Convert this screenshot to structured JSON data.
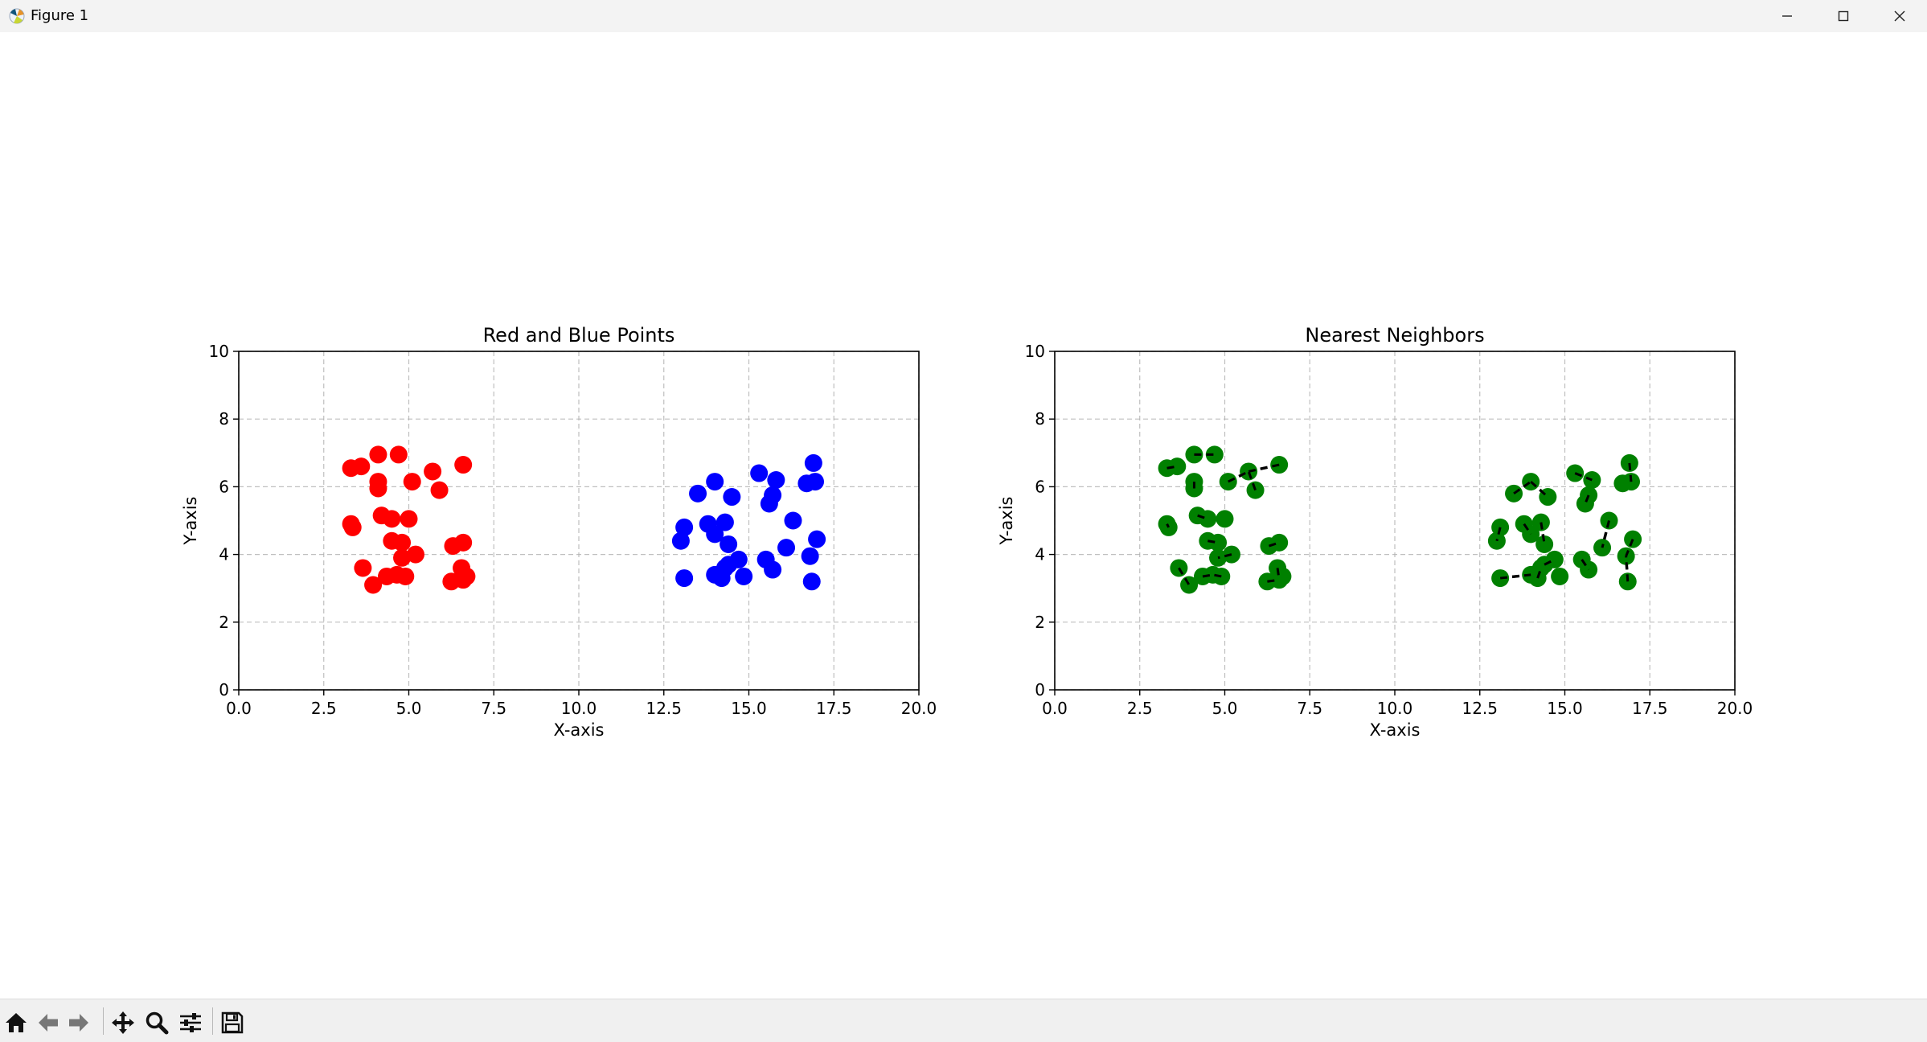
{
  "window": {
    "title": "Figure 1",
    "controls": [
      "minimize",
      "maximize",
      "close"
    ]
  },
  "toolbar": {
    "buttons": [
      "home-icon",
      "back-icon",
      "forward-icon",
      "pan-icon",
      "zoom-icon",
      "configure-subplots-icon",
      "save-icon"
    ],
    "coordinates": ""
  },
  "chart_data": [
    {
      "type": "scatter",
      "title": "Red and Blue Points",
      "xlabel": "X-axis",
      "ylabel": "Y-axis",
      "xlim": [
        0,
        20
      ],
      "ylim": [
        0,
        10
      ],
      "xticks": [
        "0.0",
        "2.5",
        "5.0",
        "7.5",
        "10.0",
        "12.5",
        "15.0",
        "17.5",
        "20.0"
      ],
      "yticks": [
        "0",
        "2",
        "4",
        "6",
        "8",
        "10"
      ],
      "grid": true,
      "series": [
        {
          "color": "#ff0000",
          "points": [
            [
              3.3,
              6.55
            ],
            [
              3.6,
              6.6
            ],
            [
              4.1,
              6.95
            ],
            [
              4.7,
              6.95
            ],
            [
              4.1,
              6.15
            ],
            [
              4.1,
              5.95
            ],
            [
              5.1,
              6.15
            ],
            [
              5.7,
              6.45
            ],
            [
              5.9,
              5.9
            ],
            [
              6.6,
              6.65
            ],
            [
              3.3,
              4.9
            ],
            [
              3.35,
              4.8
            ],
            [
              4.2,
              5.15
            ],
            [
              4.5,
              5.05
            ],
            [
              5.0,
              5.05
            ],
            [
              4.5,
              4.4
            ],
            [
              4.8,
              4.35
            ],
            [
              5.2,
              4.0
            ],
            [
              4.8,
              3.9
            ],
            [
              6.3,
              4.25
            ],
            [
              6.6,
              4.35
            ],
            [
              3.65,
              3.6
            ],
            [
              3.95,
              3.1
            ],
            [
              4.35,
              3.35
            ],
            [
              4.65,
              3.4
            ],
            [
              4.9,
              3.35
            ],
            [
              6.25,
              3.2
            ],
            [
              6.55,
              3.6
            ],
            [
              6.6,
              3.25
            ],
            [
              6.7,
              3.35
            ]
          ]
        },
        {
          "color": "#0000ff",
          "points": [
            [
              14.0,
              6.15
            ],
            [
              13.5,
              5.8
            ],
            [
              14.5,
              5.7
            ],
            [
              15.3,
              6.4
            ],
            [
              15.8,
              6.2
            ],
            [
              15.7,
              5.75
            ],
            [
              15.6,
              5.5
            ],
            [
              16.9,
              6.7
            ],
            [
              16.7,
              6.1
            ],
            [
              16.95,
              6.15
            ],
            [
              13.1,
              4.8
            ],
            [
              13.0,
              4.4
            ],
            [
              13.8,
              4.9
            ],
            [
              14.0,
              4.6
            ],
            [
              14.3,
              4.95
            ],
            [
              14.4,
              4.3
            ],
            [
              16.3,
              5.0
            ],
            [
              16.1,
              4.2
            ],
            [
              17.0,
              4.45
            ],
            [
              16.8,
              3.95
            ],
            [
              13.1,
              3.3
            ],
            [
              14.0,
              3.4
            ],
            [
              14.2,
              3.3
            ],
            [
              14.3,
              3.6
            ],
            [
              14.4,
              3.7
            ],
            [
              14.7,
              3.85
            ],
            [
              14.85,
              3.35
            ],
            [
              15.5,
              3.85
            ],
            [
              15.7,
              3.55
            ],
            [
              16.85,
              3.2
            ]
          ]
        }
      ]
    },
    {
      "type": "scatter",
      "title": "Nearest Neighbors",
      "xlabel": "X-axis",
      "ylabel": "Y-axis",
      "xlim": [
        0,
        20
      ],
      "ylim": [
        0,
        10
      ],
      "xticks": [
        "0.0",
        "2.5",
        "5.0",
        "7.5",
        "10.0",
        "12.5",
        "15.0",
        "17.5",
        "20.0"
      ],
      "yticks": [
        "0",
        "2",
        "4",
        "6",
        "8",
        "10"
      ],
      "grid": true,
      "series": [
        {
          "color": "#008000",
          "points": [
            [
              3.3,
              6.55
            ],
            [
              3.6,
              6.6
            ],
            [
              4.1,
              6.95
            ],
            [
              4.7,
              6.95
            ],
            [
              4.1,
              6.15
            ],
            [
              4.1,
              5.95
            ],
            [
              5.1,
              6.15
            ],
            [
              5.7,
              6.45
            ],
            [
              5.9,
              5.9
            ],
            [
              6.6,
              6.65
            ],
            [
              3.3,
              4.9
            ],
            [
              3.35,
              4.8
            ],
            [
              4.2,
              5.15
            ],
            [
              4.5,
              5.05
            ],
            [
              5.0,
              5.05
            ],
            [
              4.5,
              4.4
            ],
            [
              4.8,
              4.35
            ],
            [
              5.2,
              4.0
            ],
            [
              4.8,
              3.9
            ],
            [
              6.3,
              4.25
            ],
            [
              6.6,
              4.35
            ],
            [
              3.65,
              3.6
            ],
            [
              3.95,
              3.1
            ],
            [
              4.35,
              3.35
            ],
            [
              4.65,
              3.4
            ],
            [
              4.9,
              3.35
            ],
            [
              6.25,
              3.2
            ],
            [
              6.55,
              3.6
            ],
            [
              6.6,
              3.25
            ],
            [
              6.7,
              3.35
            ],
            [
              14.0,
              6.15
            ],
            [
              13.5,
              5.8
            ],
            [
              14.5,
              5.7
            ],
            [
              15.3,
              6.4
            ],
            [
              15.8,
              6.2
            ],
            [
              15.7,
              5.75
            ],
            [
              15.6,
              5.5
            ],
            [
              16.9,
              6.7
            ],
            [
              16.7,
              6.1
            ],
            [
              16.95,
              6.15
            ],
            [
              13.1,
              4.8
            ],
            [
              13.0,
              4.4
            ],
            [
              13.8,
              4.9
            ],
            [
              14.0,
              4.6
            ],
            [
              14.3,
              4.95
            ],
            [
              14.4,
              4.3
            ],
            [
              16.3,
              5.0
            ],
            [
              16.1,
              4.2
            ],
            [
              17.0,
              4.45
            ],
            [
              16.8,
              3.95
            ],
            [
              13.1,
              3.3
            ],
            [
              14.0,
              3.4
            ],
            [
              14.2,
              3.3
            ],
            [
              14.3,
              3.6
            ],
            [
              14.4,
              3.7
            ],
            [
              14.7,
              3.85
            ],
            [
              14.85,
              3.35
            ],
            [
              15.5,
              3.85
            ],
            [
              15.7,
              3.55
            ],
            [
              16.85,
              3.2
            ]
          ]
        }
      ],
      "neighbor_links": [
        [
          [
            3.3,
            6.55
          ],
          [
            3.6,
            6.6
          ]
        ],
        [
          [
            4.1,
            6.95
          ],
          [
            4.7,
            6.95
          ]
        ],
        [
          [
            4.1,
            6.15
          ],
          [
            4.1,
            5.95
          ]
        ],
        [
          [
            5.1,
            6.15
          ],
          [
            5.7,
            6.45
          ]
        ],
        [
          [
            5.9,
            5.9
          ],
          [
            5.7,
            6.45
          ]
        ],
        [
          [
            6.6,
            6.65
          ],
          [
            5.7,
            6.45
          ]
        ],
        [
          [
            3.3,
            4.9
          ],
          [
            3.35,
            4.8
          ]
        ],
        [
          [
            4.2,
            5.15
          ],
          [
            4.5,
            5.05
          ]
        ],
        [
          [
            4.5,
            4.4
          ],
          [
            4.8,
            4.35
          ]
        ],
        [
          [
            5.2,
            4.0
          ],
          [
            4.8,
            3.9
          ]
        ],
        [
          [
            6.3,
            4.25
          ],
          [
            6.6,
            4.35
          ]
        ],
        [
          [
            3.65,
            3.6
          ],
          [
            3.95,
            3.1
          ]
        ],
        [
          [
            4.35,
            3.35
          ],
          [
            4.65,
            3.4
          ]
        ],
        [
          [
            4.9,
            3.35
          ],
          [
            4.65,
            3.4
          ]
        ],
        [
          [
            6.25,
            3.2
          ],
          [
            6.6,
            3.25
          ]
        ],
        [
          [
            6.55,
            3.6
          ],
          [
            6.6,
            3.25
          ]
        ],
        [
          [
            14.0,
            6.15
          ],
          [
            14.5,
            5.7
          ]
        ],
        [
          [
            13.5,
            5.8
          ],
          [
            14.0,
            6.15
          ]
        ],
        [
          [
            15.3,
            6.4
          ],
          [
            15.8,
            6.2
          ]
        ],
        [
          [
            15.7,
            5.75
          ],
          [
            15.6,
            5.5
          ]
        ],
        [
          [
            16.9,
            6.7
          ],
          [
            16.95,
            6.15
          ]
        ],
        [
          [
            13.1,
            4.8
          ],
          [
            13.0,
            4.4
          ]
        ],
        [
          [
            13.8,
            4.9
          ],
          [
            14.0,
            4.6
          ]
        ],
        [
          [
            14.3,
            4.95
          ],
          [
            14.4,
            4.3
          ]
        ],
        [
          [
            16.3,
            5.0
          ],
          [
            16.1,
            4.2
          ]
        ],
        [
          [
            17.0,
            4.45
          ],
          [
            16.8,
            3.95
          ]
        ],
        [
          [
            13.1,
            3.3
          ],
          [
            14.0,
            3.4
          ]
        ],
        [
          [
            14.2,
            3.3
          ],
          [
            14.3,
            3.6
          ]
        ],
        [
          [
            14.4,
            3.7
          ],
          [
            14.7,
            3.85
          ]
        ],
        [
          [
            15.5,
            3.85
          ],
          [
            15.7,
            3.55
          ]
        ],
        [
          [
            16.85,
            3.2
          ],
          [
            16.8,
            3.95
          ]
        ]
      ]
    }
  ]
}
